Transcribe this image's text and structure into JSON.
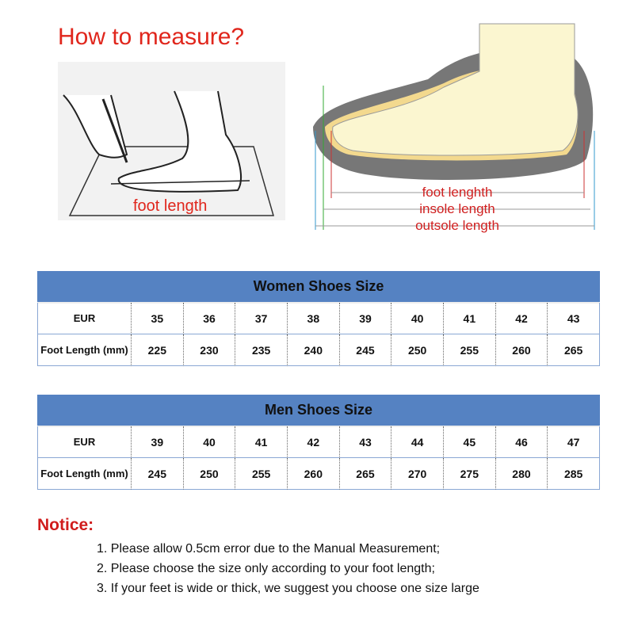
{
  "header": {
    "title": "How to measure?"
  },
  "illustration": {
    "left_label": "foot length",
    "labels": [
      "foot lenghth",
      "insole length",
      "outsole length"
    ]
  },
  "tables": [
    {
      "title": "Women Shoes Size",
      "rows": [
        [
          "EUR",
          35,
          36,
          37,
          38,
          39,
          40,
          41,
          42,
          43
        ],
        [
          "Foot Length (mm)",
          225,
          230,
          235,
          240,
          245,
          250,
          255,
          260,
          265
        ]
      ]
    },
    {
      "title": "Men Shoes Size",
      "rows": [
        [
          "EUR",
          39,
          40,
          41,
          42,
          43,
          44,
          45,
          46,
          47
        ],
        [
          "Foot Length (mm)",
          245,
          250,
          255,
          260,
          265,
          270,
          275,
          280,
          285
        ]
      ]
    }
  ],
  "notice": {
    "title": "Notice:",
    "items": [
      "1. Please allow 0.5cm error due to the Manual Measurement;",
      "2. Please choose the size only according to your foot length;",
      "3. If your feet is wide or thick, we suggest you choose one size large"
    ]
  }
}
